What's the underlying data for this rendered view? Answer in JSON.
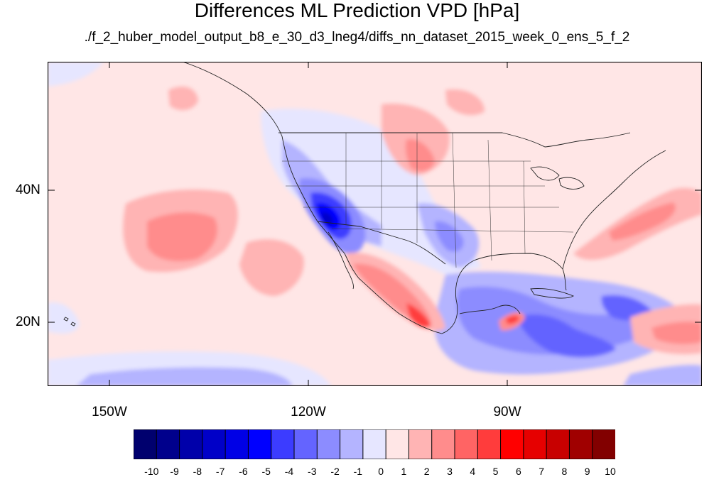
{
  "title": "Differences ML Prediction VPD [hPa]",
  "subtitle": "./f_2_huber_model_output_b8_e_30_d3_lneg4/diffs_nn_dataset_2015_week_0_ens_5_f_2",
  "lat_labels": [
    "40N",
    "20N"
  ],
  "lon_labels": [
    "150W",
    "120W",
    "90W"
  ],
  "colorbar": {
    "labels": [
      "-10",
      "-9",
      "-8",
      "-7",
      "-6",
      "-5",
      "-4",
      "-3",
      "-2",
      "-1",
      "0",
      "1",
      "2",
      "3",
      "4",
      "5",
      "6",
      "7",
      "8",
      "9",
      "10"
    ],
    "colors": [
      "#00006e",
      "#00008c",
      "#0000aa",
      "#0000c8",
      "#0000e6",
      "#0000ff",
      "#3c3cff",
      "#6464ff",
      "#8c8cff",
      "#b4b4ff",
      "#e6e6ff",
      "#ffe6e6",
      "#ffb4b4",
      "#ff8c8c",
      "#ff6464",
      "#ff3c3c",
      "#ff0000",
      "#e60000",
      "#c80000",
      "#a00000",
      "#820000"
    ]
  }
}
